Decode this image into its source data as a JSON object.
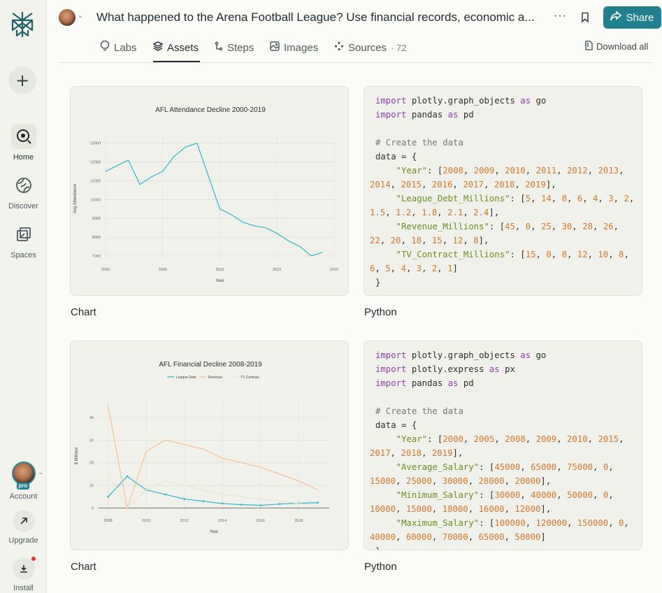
{
  "sidebar": {
    "new_label": "+",
    "items": [
      {
        "label": "Home",
        "icon": "search-icon"
      },
      {
        "label": "Discover",
        "icon": "globe-icon"
      },
      {
        "label": "Spaces",
        "icon": "spaces-icon"
      }
    ],
    "account_label": "Account",
    "pro_label": "pro",
    "upgrade_label": "Upgrade",
    "install_label": "Install"
  },
  "header": {
    "title": "What happened to the Arena Football League? Use financial records, economic a...",
    "more": "···",
    "share_label": "Share"
  },
  "tabs": [
    {
      "label": "Labs"
    },
    {
      "label": "Assets"
    },
    {
      "label": "Steps"
    },
    {
      "label": "Images"
    },
    {
      "label": "Sources",
      "count": "· 72"
    }
  ],
  "download_all": "Download all",
  "colors": {
    "accent": "#20808d",
    "line_teal": "#2fb6c8",
    "line_orange": "#f7be8c",
    "line_pale": "#e8e6cc"
  },
  "cards": [
    {
      "caption": "Chart"
    },
    {
      "caption": "Python"
    },
    {
      "caption": "Chart"
    },
    {
      "caption": "Python"
    }
  ],
  "chart_data": [
    {
      "type": "line",
      "title": "AFL Attendance Decline 2000-2019",
      "xlabel": "Year",
      "ylabel": "Avg Attendance",
      "x": [
        2000,
        2002,
        2003,
        2004,
        2005,
        2006,
        2007,
        2008,
        2010,
        2011,
        2012,
        2013,
        2014,
        2015,
        2016,
        2017,
        2018,
        2019
      ],
      "series": [
        {
          "values": [
            11500,
            12100,
            10800,
            11200,
            11500,
            12300,
            12800,
            13000,
            9500,
            9200,
            8800,
            8600,
            8500,
            8200,
            7800,
            7500,
            7000,
            7200
          ]
        }
      ],
      "xticks": [
        "2000",
        "2005",
        "2010",
        "2015",
        "2020"
      ],
      "yticks": [
        "7000",
        "8000",
        "9000",
        "10000",
        "11000",
        "12000",
        "13000"
      ],
      "xlim": [
        2000,
        2020
      ],
      "ylim": [
        6700,
        13400
      ]
    },
    {
      "type": "line",
      "title": "AFL Financial Decline 2008-2019",
      "xlabel": "Year",
      "ylabel": "$ Millions",
      "x": [
        2008,
        2009,
        2010,
        2011,
        2012,
        2013,
        2014,
        2015,
        2016,
        2017,
        2018,
        2019
      ],
      "series": [
        {
          "name": "League Debt",
          "values": [
            5,
            14,
            8,
            6,
            4,
            3,
            2,
            1.5,
            1.2,
            1.8,
            2.1,
            2.4
          ]
        },
        {
          "name": "Revenue",
          "values": [
            45,
            0,
            25,
            30,
            28,
            26,
            22,
            20,
            18,
            15,
            12,
            8
          ]
        },
        {
          "name": "TV Contract",
          "values": [
            15,
            0,
            8,
            12,
            10,
            8,
            6,
            5,
            4,
            3,
            2,
            1
          ]
        }
      ],
      "xticks": [
        "2008",
        "2010",
        "2012",
        "2014",
        "2016",
        "2018"
      ],
      "yticks": [
        "0",
        "10",
        "20",
        "30",
        "40"
      ],
      "xlim": [
        2007.5,
        2019.6
      ],
      "ylim": [
        -2,
        48
      ]
    }
  ],
  "code_blocks": [
    [
      [
        [
          "kw",
          "import"
        ],
        [
          "t",
          " plotly.graph_objects "
        ],
        [
          "kw",
          "as"
        ],
        [
          "t",
          " go"
        ]
      ],
      [
        [
          "kw",
          "import"
        ],
        [
          "t",
          " pandas "
        ],
        [
          "kw",
          "as"
        ],
        [
          "t",
          " pd"
        ]
      ],
      [
        [
          "t",
          ""
        ]
      ],
      [
        [
          "cm",
          "# Create the data"
        ]
      ],
      [
        [
          "t",
          "data = {"
        ]
      ],
      [
        [
          "t",
          "    "
        ],
        [
          "st",
          "\"Year\""
        ],
        [
          "t",
          ": ["
        ],
        [
          "nm",
          "2008"
        ],
        [
          "t",
          ", "
        ],
        [
          "nm",
          "2009"
        ],
        [
          "t",
          ", "
        ],
        [
          "nm",
          "2010"
        ],
        [
          "t",
          ", "
        ],
        [
          "nm",
          "2011"
        ],
        [
          "t",
          ", "
        ],
        [
          "nm",
          "2012"
        ],
        [
          "t",
          ", "
        ],
        [
          "nm",
          "2013"
        ],
        [
          "t",
          ", "
        ],
        [
          "nm",
          "2014"
        ],
        [
          "t",
          ", "
        ],
        [
          "nm",
          "2015"
        ],
        [
          "t",
          ", "
        ],
        [
          "nm",
          "2016"
        ],
        [
          "t",
          ", "
        ],
        [
          "nm",
          "2017"
        ],
        [
          "t",
          ", "
        ],
        [
          "nm",
          "2018"
        ],
        [
          "t",
          ", "
        ],
        [
          "nm",
          "2019"
        ],
        [
          "t",
          "],"
        ]
      ],
      [
        [
          "t",
          "    "
        ],
        [
          "st",
          "\"League_Debt_Millions\""
        ],
        [
          "t",
          ": ["
        ],
        [
          "nm",
          "5"
        ],
        [
          "t",
          ", "
        ],
        [
          "nm",
          "14"
        ],
        [
          "t",
          ", "
        ],
        [
          "nm",
          "8"
        ],
        [
          "t",
          ", "
        ],
        [
          "nm",
          "6"
        ],
        [
          "t",
          ", "
        ],
        [
          "nm",
          "4"
        ],
        [
          "t",
          ", "
        ],
        [
          "nm",
          "3"
        ],
        [
          "t",
          ", "
        ],
        [
          "nm",
          "2"
        ],
        [
          "t",
          ", "
        ],
        [
          "nm",
          "1.5"
        ],
        [
          "t",
          ", "
        ],
        [
          "nm",
          "1.2"
        ],
        [
          "t",
          ", "
        ],
        [
          "nm",
          "1.8"
        ],
        [
          "t",
          ", "
        ],
        [
          "nm",
          "2.1"
        ],
        [
          "t",
          ", "
        ],
        [
          "nm",
          "2.4"
        ],
        [
          "t",
          "],"
        ]
      ],
      [
        [
          "t",
          "    "
        ],
        [
          "st",
          "\"Revenue_Millions\""
        ],
        [
          "t",
          ": ["
        ],
        [
          "nm",
          "45"
        ],
        [
          "t",
          ", "
        ],
        [
          "nm",
          "0"
        ],
        [
          "t",
          ", "
        ],
        [
          "nm",
          "25"
        ],
        [
          "t",
          ", "
        ],
        [
          "nm",
          "30"
        ],
        [
          "t",
          ", "
        ],
        [
          "nm",
          "28"
        ],
        [
          "t",
          ", "
        ],
        [
          "nm",
          "26"
        ],
        [
          "t",
          ", "
        ],
        [
          "nm",
          "22"
        ],
        [
          "t",
          ", "
        ],
        [
          "nm",
          "20"
        ],
        [
          "t",
          ", "
        ],
        [
          "nm",
          "18"
        ],
        [
          "t",
          ", "
        ],
        [
          "nm",
          "15"
        ],
        [
          "t",
          ", "
        ],
        [
          "nm",
          "12"
        ],
        [
          "t",
          ", "
        ],
        [
          "nm",
          "8"
        ],
        [
          "t",
          "],"
        ]
      ],
      [
        [
          "t",
          "    "
        ],
        [
          "st",
          "\"TV_Contract_Millions\""
        ],
        [
          "t",
          ": ["
        ],
        [
          "nm",
          "15"
        ],
        [
          "t",
          ", "
        ],
        [
          "nm",
          "0"
        ],
        [
          "t",
          ", "
        ],
        [
          "nm",
          "8"
        ],
        [
          "t",
          ", "
        ],
        [
          "nm",
          "12"
        ],
        [
          "t",
          ", "
        ],
        [
          "nm",
          "10"
        ],
        [
          "t",
          ", "
        ],
        [
          "nm",
          "8"
        ],
        [
          "t",
          ", "
        ],
        [
          "nm",
          "6"
        ],
        [
          "t",
          ", "
        ],
        [
          "nm",
          "5"
        ],
        [
          "t",
          ", "
        ],
        [
          "nm",
          "4"
        ],
        [
          "t",
          ", "
        ],
        [
          "nm",
          "3"
        ],
        [
          "t",
          ", "
        ],
        [
          "nm",
          "2"
        ],
        [
          "t",
          ", "
        ],
        [
          "nm",
          "1"
        ],
        [
          "t",
          "]"
        ]
      ],
      [
        [
          "t",
          "}"
        ]
      ]
    ],
    [
      [
        [
          "kw",
          "import"
        ],
        [
          "t",
          " plotly.graph_objects "
        ],
        [
          "kw",
          "as"
        ],
        [
          "t",
          " go"
        ]
      ],
      [
        [
          "kw",
          "import"
        ],
        [
          "t",
          " plotly.express "
        ],
        [
          "kw",
          "as"
        ],
        [
          "t",
          " px"
        ]
      ],
      [
        [
          "kw",
          "import"
        ],
        [
          "t",
          " pandas "
        ],
        [
          "kw",
          "as"
        ],
        [
          "t",
          " pd"
        ]
      ],
      [
        [
          "t",
          ""
        ]
      ],
      [
        [
          "cm",
          "# Create the data"
        ]
      ],
      [
        [
          "t",
          "data = {"
        ]
      ],
      [
        [
          "t",
          "    "
        ],
        [
          "st",
          "\"Year\""
        ],
        [
          "t",
          ": ["
        ],
        [
          "nm",
          "2000"
        ],
        [
          "t",
          ", "
        ],
        [
          "nm",
          "2005"
        ],
        [
          "t",
          ", "
        ],
        [
          "nm",
          "2008"
        ],
        [
          "t",
          ", "
        ],
        [
          "nm",
          "2009"
        ],
        [
          "t",
          ", "
        ],
        [
          "nm",
          "2010"
        ],
        [
          "t",
          ", "
        ],
        [
          "nm",
          "2015"
        ],
        [
          "t",
          ", "
        ],
        [
          "nm",
          "2017"
        ],
        [
          "t",
          ", "
        ],
        [
          "nm",
          "2018"
        ],
        [
          "t",
          ", "
        ],
        [
          "nm",
          "2019"
        ],
        [
          "t",
          "],"
        ]
      ],
      [
        [
          "t",
          "    "
        ],
        [
          "st",
          "\"Average_Salary\""
        ],
        [
          "t",
          ": ["
        ],
        [
          "nm",
          "45000"
        ],
        [
          "t",
          ", "
        ],
        [
          "nm",
          "65000"
        ],
        [
          "t",
          ", "
        ],
        [
          "nm",
          "75000"
        ],
        [
          "t",
          ", "
        ],
        [
          "nm",
          "0"
        ],
        [
          "t",
          ", "
        ],
        [
          "nm",
          "15000"
        ],
        [
          "t",
          ", "
        ],
        [
          "nm",
          "25000"
        ],
        [
          "t",
          ", "
        ],
        [
          "nm",
          "30000"
        ],
        [
          "t",
          ", "
        ],
        [
          "nm",
          "28000"
        ],
        [
          "t",
          ", "
        ],
        [
          "nm",
          "20000"
        ],
        [
          "t",
          "],"
        ]
      ],
      [
        [
          "t",
          "    "
        ],
        [
          "st",
          "\"Minimum_Salary\""
        ],
        [
          "t",
          ": ["
        ],
        [
          "nm",
          "30000"
        ],
        [
          "t",
          ", "
        ],
        [
          "nm",
          "40000"
        ],
        [
          "t",
          ", "
        ],
        [
          "nm",
          "50000"
        ],
        [
          "t",
          ", "
        ],
        [
          "nm",
          "0"
        ],
        [
          "t",
          ", "
        ],
        [
          "nm",
          "10000"
        ],
        [
          "t",
          ", "
        ],
        [
          "nm",
          "15000"
        ],
        [
          "t",
          ", "
        ],
        [
          "nm",
          "18000"
        ],
        [
          "t",
          ", "
        ],
        [
          "nm",
          "16000"
        ],
        [
          "t",
          ", "
        ],
        [
          "nm",
          "12000"
        ],
        [
          "t",
          "],"
        ]
      ],
      [
        [
          "t",
          "    "
        ],
        [
          "st",
          "\"Maximum_Salary\""
        ],
        [
          "t",
          ": ["
        ],
        [
          "nm",
          "100000"
        ],
        [
          "t",
          ", "
        ],
        [
          "nm",
          "120000"
        ],
        [
          "t",
          ", "
        ],
        [
          "nm",
          "150000"
        ],
        [
          "t",
          ", "
        ],
        [
          "nm",
          "0"
        ],
        [
          "t",
          ", "
        ],
        [
          "nm",
          "40000"
        ],
        [
          "t",
          ", "
        ],
        [
          "nm",
          "60000"
        ],
        [
          "t",
          ", "
        ],
        [
          "nm",
          "70000"
        ],
        [
          "t",
          ", "
        ],
        [
          "nm",
          "65000"
        ],
        [
          "t",
          ", "
        ],
        [
          "nm",
          "50000"
        ],
        [
          "t",
          "]"
        ]
      ],
      [
        [
          "t",
          "}"
        ]
      ]
    ]
  ]
}
